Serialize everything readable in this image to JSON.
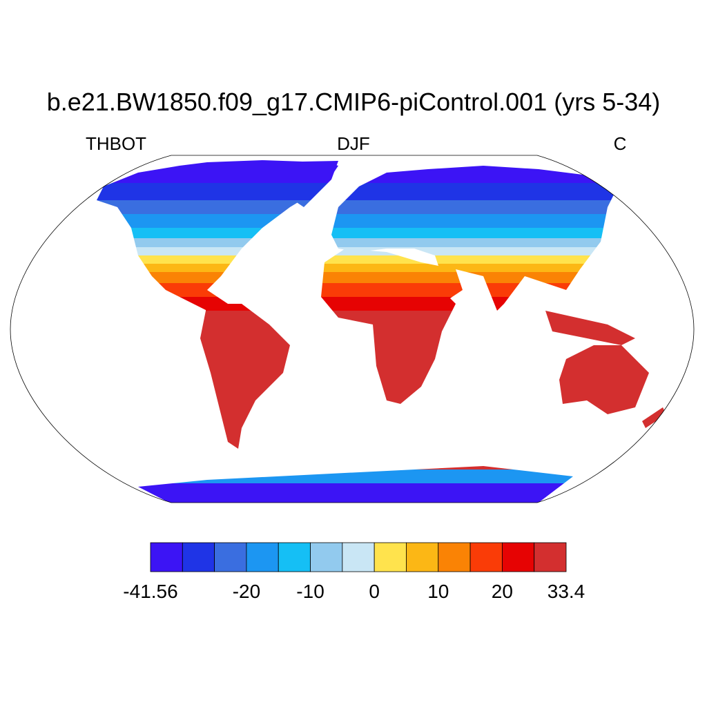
{
  "title": "b.e21.BW1850.f09_g17.CMIP6-piControl.001 (yrs 5-34)",
  "left_label": "THBOT",
  "center_label": "DJF",
  "right_label": "C",
  "colorbar": {
    "colors": [
      "#3c14f5",
      "#1f34e6",
      "#3a6ee0",
      "#1c96f2",
      "#15bff5",
      "#92caee",
      "#c9e6f5",
      "#ffe34d",
      "#fcb715",
      "#fa8305",
      "#fa3c07",
      "#e60303",
      "#d32f2f"
    ],
    "levels": [
      -41.56,
      null,
      null,
      -20,
      null,
      -10,
      null,
      0,
      null,
      10,
      null,
      20,
      null,
      33.4
    ]
  }
}
